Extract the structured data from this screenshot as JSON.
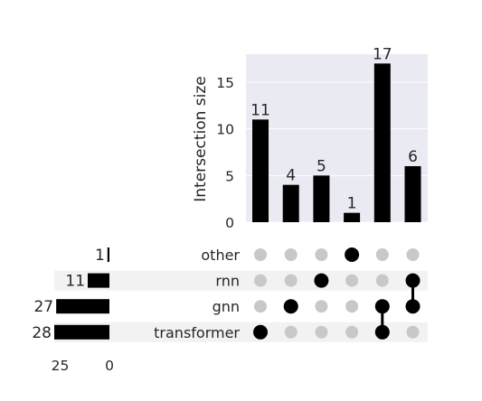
{
  "chart_data": {
    "type": "bar",
    "kind": "upset",
    "ylabel": "Intersection size",
    "ylim": [
      0,
      18
    ],
    "yticks": [
      0,
      5,
      10,
      15
    ],
    "sets": [
      "other",
      "rnn",
      "gnn",
      "transformer"
    ],
    "set_sizes": [
      1,
      11,
      27,
      28
    ],
    "set_size_ticks": [
      25,
      0
    ],
    "intersections": [
      {
        "members": [
          "transformer"
        ],
        "value": 11
      },
      {
        "members": [
          "gnn"
        ],
        "value": 4
      },
      {
        "members": [
          "rnn"
        ],
        "value": 5
      },
      {
        "members": [
          "other"
        ],
        "value": 1
      },
      {
        "members": [
          "gnn",
          "transformer"
        ],
        "value": 17
      },
      {
        "members": [
          "rnn",
          "gnn"
        ],
        "value": 6
      }
    ],
    "colors": {
      "bar": "#000000",
      "plot_background": "#eaeaf2",
      "stripe": "#f2f2f2",
      "dot_off": "#c8c8c8",
      "dot_on": "#000000",
      "grid": "#ffffff"
    }
  }
}
